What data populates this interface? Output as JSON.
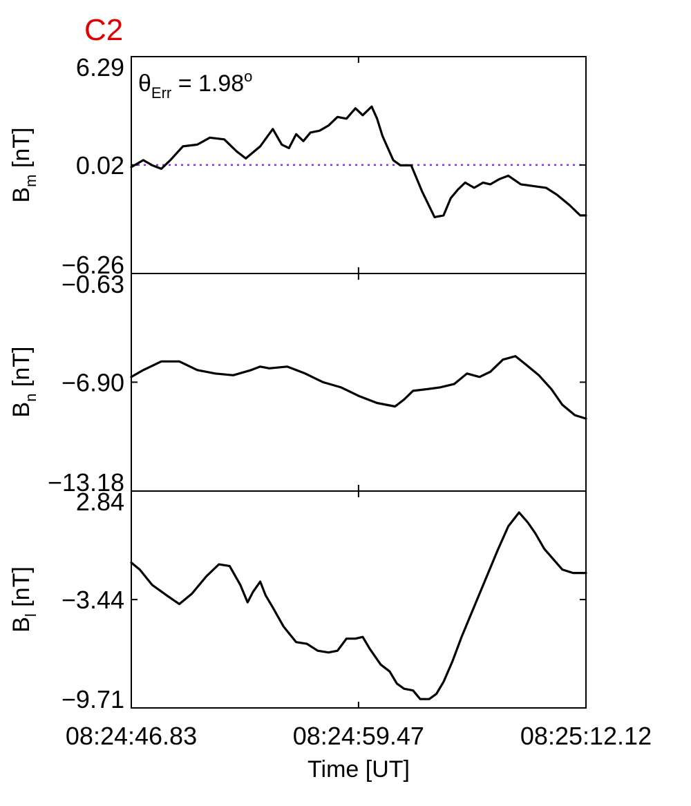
{
  "chart_data": {
    "type": "line",
    "title": "C2",
    "xlabel": "Time [UT]",
    "x_ticks": [
      "08:24:46.83",
      "08:24:59.47",
      "08:25:12.12"
    ],
    "x_tick_seconds": [
      46.83,
      59.47,
      72.12
    ],
    "xlim_seconds": [
      46.83,
      72.12
    ],
    "grid": false,
    "panels": [
      {
        "ylabel_base": "B",
        "ylabel_sub": "m",
        "ylabel_unit": " [nT]",
        "ylim": [
          -6.26,
          6.29
        ],
        "y_ticks": [
          "6.29",
          "0.02",
          "-6.26"
        ],
        "y_tick_values": [
          6.29,
          0.02,
          -6.26
        ],
        "annotation_base": "θ",
        "annotation_sub": "Err",
        "annotation_eq": " =  1.98",
        "annotation_sup": "o",
        "reference_line": {
          "y": 0.02,
          "color": "#8a2be2",
          "style": "dotted"
        },
        "series": [
          {
            "x": [
              46.83,
              47.5,
              48.0,
              48.5,
              49.0,
              49.7,
              50.5,
              51.2,
              52.0,
              52.7,
              53.2,
              54.0,
              54.7,
              55.2,
              55.6,
              56.0,
              56.4,
              56.8,
              57.3,
              57.8,
              58.3,
              58.8,
              59.3,
              59.7,
              60.2,
              60.5,
              60.8,
              61.1,
              61.4,
              61.8,
              62.4,
              63.0,
              63.7,
              64.2,
              64.6,
              65.0,
              65.4,
              65.9,
              66.4,
              66.8,
              67.3,
              67.8,
              68.5,
              69.2,
              69.9,
              70.5,
              71.2,
              71.8,
              72.12
            ],
            "y": [
              -0.1,
              0.3,
              0.0,
              -0.2,
              0.3,
              1.1,
              1.2,
              1.6,
              1.5,
              0.8,
              0.4,
              1.1,
              2.1,
              1.2,
              1.0,
              1.8,
              1.4,
              1.9,
              2.0,
              2.3,
              2.8,
              2.7,
              3.3,
              2.9,
              3.4,
              2.7,
              1.7,
              1.0,
              0.3,
              0.0,
              0.0,
              -1.5,
              -3.0,
              -2.9,
              -1.9,
              -1.4,
              -1.0,
              -1.3,
              -1.0,
              -1.1,
              -0.8,
              -0.6,
              -1.1,
              -1.2,
              -1.3,
              -1.7,
              -2.3,
              -2.9,
              -2.9
            ]
          }
        ]
      },
      {
        "ylabel_base": "B",
        "ylabel_sub": "n",
        "ylabel_unit": " [nT]",
        "ylim": [
          -13.18,
          -0.63
        ],
        "y_ticks": [
          "-0.63",
          "-6.90",
          "-13.18"
        ],
        "y_tick_values": [
          -0.63,
          -6.9,
          -13.18
        ],
        "series": [
          {
            "x": [
              46.83,
              47.5,
              48.5,
              49.5,
              50.5,
              51.5,
              52.5,
              53.5,
              54.0,
              54.5,
              55.5,
              56.5,
              57.5,
              58.5,
              59.5,
              60.5,
              61.5,
              62.0,
              62.5,
              63.3,
              64.0,
              64.8,
              65.5,
              66.2,
              66.8,
              67.5,
              68.2,
              68.8,
              69.5,
              70.2,
              70.8,
              71.5,
              72.12
            ],
            "y": [
              -6.6,
              -6.2,
              -5.7,
              -5.7,
              -6.2,
              -6.4,
              -6.5,
              -6.2,
              -6.0,
              -6.1,
              -6.0,
              -6.4,
              -6.9,
              -7.2,
              -7.7,
              -8.1,
              -8.3,
              -7.9,
              -7.4,
              -7.3,
              -7.2,
              -7.0,
              -6.4,
              -6.6,
              -6.3,
              -5.6,
              -5.4,
              -5.9,
              -6.5,
              -7.3,
              -8.2,
              -8.8,
              -9.0
            ]
          }
        ]
      },
      {
        "ylabel_base": "B",
        "ylabel_sub": "l",
        "ylabel_unit": " [nT]",
        "ylim": [
          -9.71,
          2.84
        ],
        "y_ticks": [
          "2.84",
          "-3.44",
          "-9.71"
        ],
        "y_tick_values": [
          2.84,
          -3.44,
          -9.71
        ],
        "series": [
          {
            "x": [
              46.83,
              47.3,
              48.0,
              48.8,
              49.5,
              50.2,
              51.0,
              51.7,
              52.3,
              52.9,
              53.3,
              53.6,
              54.0,
              54.3,
              54.7,
              55.3,
              56.0,
              56.6,
              57.2,
              57.8,
              58.3,
              58.8,
              59.3,
              59.7,
              60.1,
              60.7,
              61.2,
              61.6,
              62.0,
              62.5,
              62.9,
              63.4,
              63.8,
              64.2,
              64.7,
              65.2,
              65.6,
              66.0,
              66.6,
              67.2,
              67.8,
              68.4,
              68.9,
              69.3,
              69.8,
              70.3,
              70.8,
              71.4,
              72.12
            ],
            "y": [
              -1.3,
              -1.7,
              -2.6,
              -3.2,
              -3.7,
              -3.1,
              -2.1,
              -1.4,
              -1.5,
              -2.6,
              -3.6,
              -3.0,
              -2.4,
              -3.2,
              -3.9,
              -5.0,
              -5.9,
              -6.0,
              -6.4,
              -6.5,
              -6.4,
              -5.7,
              -5.7,
              -5.6,
              -6.3,
              -7.2,
              -7.6,
              -8.3,
              -8.6,
              -8.7,
              -9.2,
              -9.2,
              -8.9,
              -8.2,
              -7.0,
              -5.6,
              -4.6,
              -3.6,
              -2.1,
              -0.6,
              0.8,
              1.6,
              1.0,
              0.4,
              -0.5,
              -1.1,
              -1.7,
              -1.9,
              -1.9
            ]
          }
        ]
      }
    ]
  }
}
